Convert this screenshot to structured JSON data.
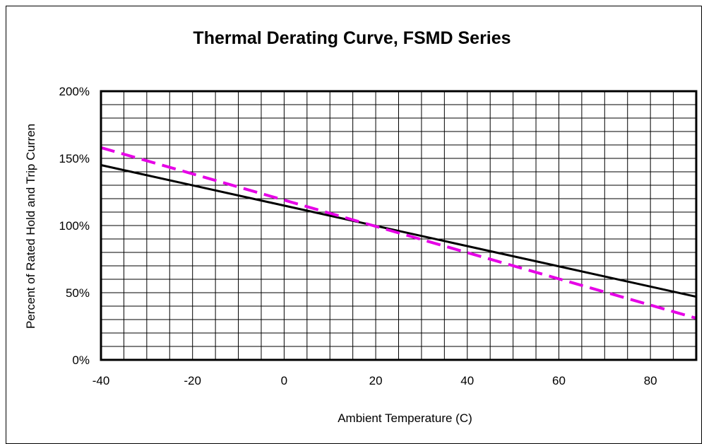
{
  "chart_data": {
    "type": "line",
    "title": "Thermal Derating Curve, FSMD Series",
    "xlabel": "Ambient Temperature (C)",
    "ylabel": "Percent of Rated Hold  and Trip Curren",
    "xlim": [
      -40,
      90
    ],
    "ylim": [
      0,
      200
    ],
    "x_ticks": [
      -40,
      -20,
      0,
      20,
      40,
      60,
      80
    ],
    "y_ticks": [
      0,
      50,
      100,
      150,
      200
    ],
    "y_tick_labels": [
      "0%",
      "50%",
      "100%",
      "150%",
      "200%"
    ],
    "grid": true,
    "series": [
      {
        "style": "solid",
        "color": "#000000",
        "x": [
          -40,
          90
        ],
        "y": [
          145,
          47
        ]
      },
      {
        "style": "dashed",
        "color": "#e600e6",
        "x": [
          -40,
          90
        ],
        "y": [
          158,
          31
        ]
      }
    ]
  }
}
